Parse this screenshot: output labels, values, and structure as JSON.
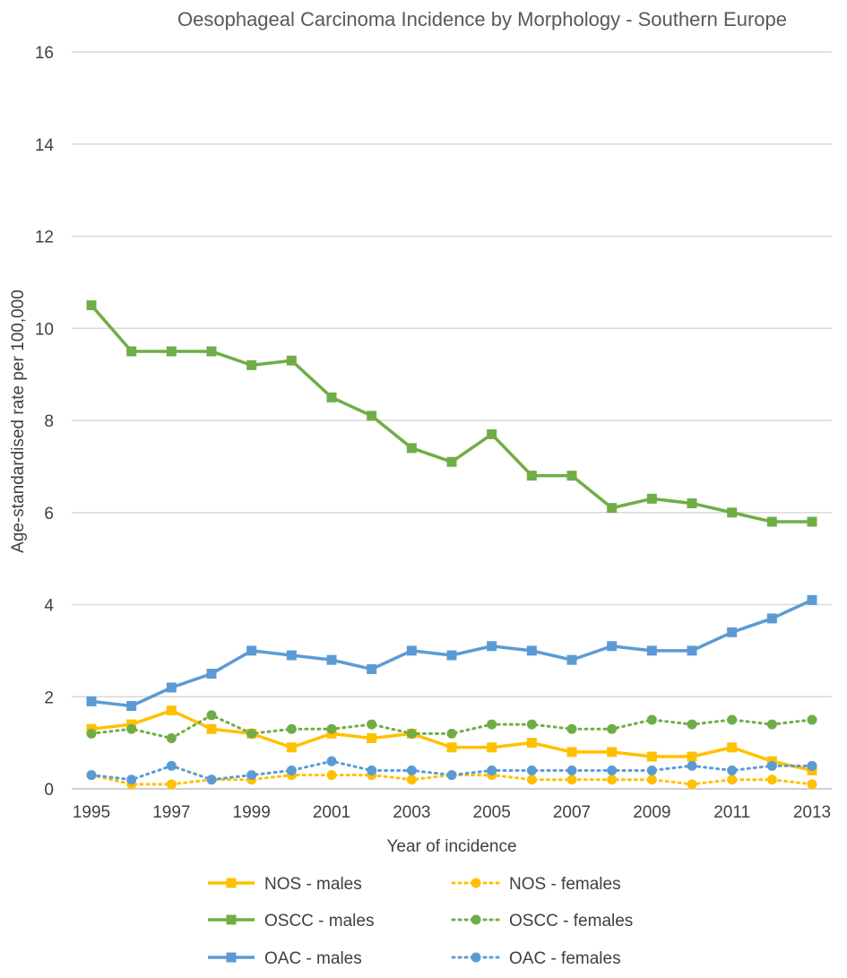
{
  "chart_data": {
    "type": "line",
    "title": "Oesophageal Carcinoma Incidence by Morphology - Southern Europe",
    "xlabel": "Year of incidence",
    "ylabel": "Age-standardised rate per 100,000",
    "x": [
      1995,
      1996,
      1997,
      1998,
      1999,
      2000,
      2001,
      2002,
      2003,
      2004,
      2005,
      2006,
      2007,
      2008,
      2009,
      2010,
      2011,
      2012,
      2013
    ],
    "x_tick_labels": [
      "1995",
      "1997",
      "1999",
      "2001",
      "2003",
      "2005",
      "2007",
      "2009",
      "2011",
      "2013"
    ],
    "y_tick_labels": [
      "0",
      "2",
      "4",
      "6",
      "8",
      "10",
      "12",
      "14",
      "16"
    ],
    "ylim": [
      0,
      16
    ],
    "grid": true,
    "legend_position": "bottom",
    "series": [
      {
        "name": "NOS - males",
        "color": "#FFC000",
        "line_style": "solid",
        "marker": "square",
        "values": [
          1.3,
          1.4,
          1.7,
          1.3,
          1.2,
          0.9,
          1.2,
          1.1,
          1.2,
          0.9,
          0.9,
          1.0,
          0.8,
          0.8,
          0.7,
          0.7,
          0.9,
          0.6,
          0.4
        ]
      },
      {
        "name": "NOS - females",
        "color": "#FFC000",
        "line_style": "dotted",
        "marker": "circle",
        "values": [
          0.3,
          0.1,
          0.1,
          0.2,
          0.2,
          0.3,
          0.3,
          0.3,
          0.2,
          0.3,
          0.3,
          0.2,
          0.2,
          0.2,
          0.2,
          0.1,
          0.2,
          0.2,
          0.1
        ]
      },
      {
        "name": "OSCC - males",
        "color": "#70AD47",
        "line_style": "solid",
        "marker": "square",
        "values": [
          10.5,
          9.5,
          9.5,
          9.5,
          9.2,
          9.3,
          8.5,
          8.1,
          7.4,
          7.1,
          7.7,
          6.8,
          6.8,
          6.1,
          6.3,
          6.2,
          6.0,
          5.8,
          5.8
        ]
      },
      {
        "name": "OSCC - females",
        "color": "#70AD47",
        "line_style": "dotted",
        "marker": "circle",
        "values": [
          1.2,
          1.3,
          1.1,
          1.6,
          1.2,
          1.3,
          1.3,
          1.4,
          1.2,
          1.2,
          1.4,
          1.4,
          1.3,
          1.3,
          1.5,
          1.4,
          1.5,
          1.4,
          1.5
        ]
      },
      {
        "name": "OAC - males",
        "color": "#5B9BD5",
        "line_style": "solid",
        "marker": "square",
        "values": [
          1.9,
          1.8,
          2.2,
          2.5,
          3.0,
          2.9,
          2.8,
          2.6,
          3.0,
          2.9,
          3.1,
          3.0,
          2.8,
          3.1,
          3.0,
          3.0,
          3.4,
          3.7,
          4.1
        ]
      },
      {
        "name": "OAC - females",
        "color": "#5B9BD5",
        "line_style": "dotted",
        "marker": "circle",
        "values": [
          0.3,
          0.2,
          0.5,
          0.2,
          0.3,
          0.4,
          0.6,
          0.4,
          0.4,
          0.3,
          0.4,
          0.4,
          0.4,
          0.4,
          0.4,
          0.5,
          0.4,
          0.5,
          0.5
        ]
      }
    ]
  }
}
